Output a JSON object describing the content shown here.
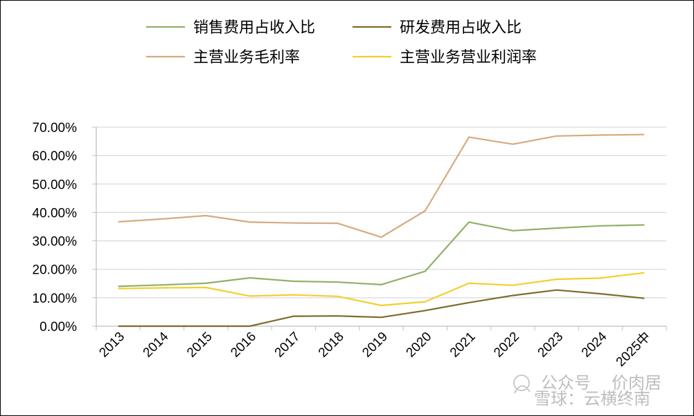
{
  "chart_data": {
    "type": "line",
    "title": "",
    "xlabel": "",
    "ylabel": "",
    "categories": [
      "2013",
      "2014",
      "2015",
      "2016",
      "2017",
      "2018",
      "2019",
      "2020",
      "2021",
      "2022",
      "2023",
      "2024",
      "2025中"
    ],
    "y_ticks": [
      "0.00%",
      "10.00%",
      "20.00%",
      "30.00%",
      "40.00%",
      "50.00%",
      "60.00%",
      "70.00%"
    ],
    "ylim": [
      0,
      70
    ],
    "grid": true,
    "legend_position": "top",
    "series": [
      {
        "name": "销售费用占收入比",
        "color": "#8fb067",
        "values": [
          14.0,
          14.5,
          15.1,
          17.0,
          15.8,
          15.5,
          14.6,
          19.3,
          36.6,
          33.6,
          34.5,
          35.3,
          35.6
        ]
      },
      {
        "name": "研发费用占收入比",
        "color": "#7f6a2a",
        "values": [
          0.0,
          0.0,
          0.0,
          0.0,
          3.5,
          3.6,
          3.1,
          5.5,
          8.3,
          10.8,
          12.7,
          11.4,
          9.8
        ]
      },
      {
        "name": "主营业务毛利率",
        "color": "#d6aa7e",
        "values": [
          36.7,
          37.7,
          38.9,
          36.6,
          36.3,
          36.2,
          31.3,
          40.6,
          66.5,
          64.0,
          66.9,
          67.2,
          67.4
        ]
      },
      {
        "name": "主营业务营业利润率",
        "color": "#f2cf2c",
        "values": [
          13.2,
          13.5,
          13.6,
          10.6,
          11.0,
          10.5,
          7.3,
          8.6,
          15.1,
          14.4,
          16.5,
          16.9,
          18.8
        ]
      }
    ]
  },
  "watermark": {
    "brand": "雪球：云横终南",
    "prefix": "公众号",
    "author": "价肉居"
  }
}
